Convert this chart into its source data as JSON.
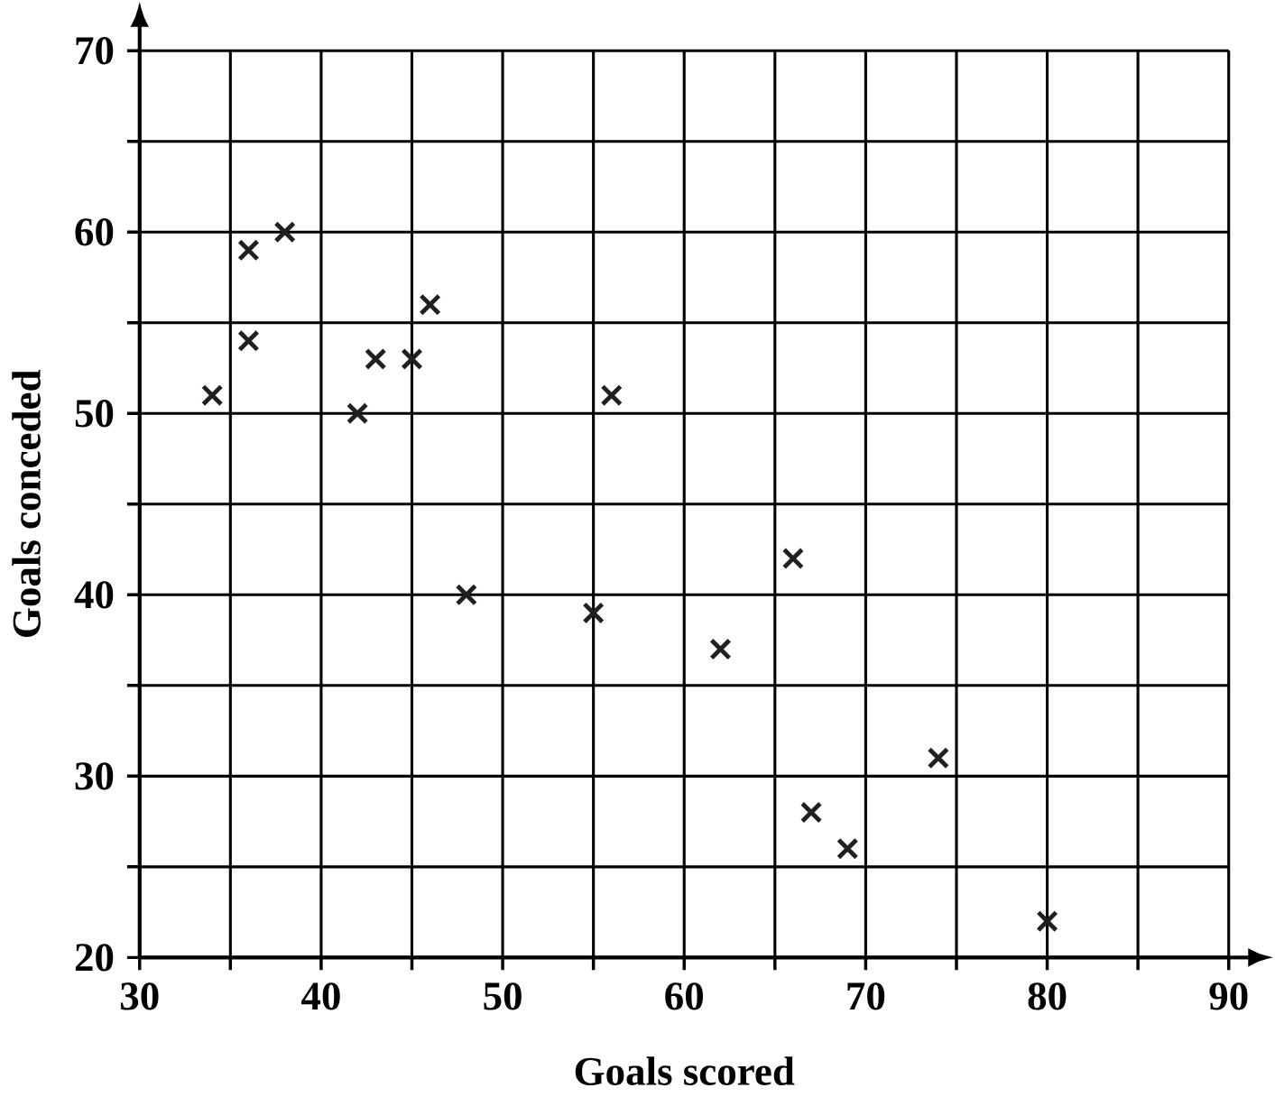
{
  "chart_data": {
    "type": "scatter",
    "xlabel": "Goals scored",
    "ylabel": "Goals conceded",
    "x": [
      34,
      36,
      36,
      38,
      42,
      43,
      45,
      46,
      48,
      55,
      56,
      62,
      66,
      67,
      69,
      74,
      80
    ],
    "values": [
      51,
      59,
      54,
      60,
      50,
      53,
      53,
      56,
      40,
      39,
      51,
      37,
      42,
      28,
      26,
      31,
      22
    ],
    "color": "#231f20",
    "marker": "cross",
    "grid": true,
    "xlim": [
      30,
      90
    ],
    "ylim": [
      20,
      70
    ],
    "xticks": [
      30,
      {
        "value": 35,
        "label": null
      },
      40,
      {
        "value": 45,
        "label": null
      },
      50,
      {
        "value": 55,
        "label": null
      },
      60,
      {
        "value": 65,
        "label": null
      },
      70,
      {
        "value": 75,
        "label": null
      },
      80,
      {
        "value": 85,
        "label": null
      },
      90
    ],
    "yticks": [
      20,
      {
        "value": 25,
        "label": null
      },
      30,
      {
        "value": 35,
        "label": null
      },
      40,
      {
        "value": 45,
        "label": null
      },
      50,
      {
        "value": 55,
        "label": null
      },
      60,
      {
        "value": 65,
        "label": null
      },
      70
    ]
  }
}
